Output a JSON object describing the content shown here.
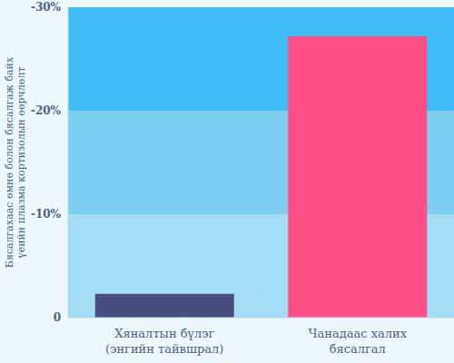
{
  "chart_data": {
    "type": "bar",
    "y_label": "Бясалгахаас өмнө болон бясалгаж байх үеийн плазма кортизолын өөрчлөлт",
    "categories": [
      "Хяналтын бүлэг (энгийн тайвшрал)",
      "Чанадаас халих бясалгал"
    ],
    "values": [
      -2.3,
      -27.2
    ],
    "colors": [
      "#4a4e7e",
      "#ff4f86"
    ],
    "ylim": [
      0,
      -30
    ],
    "yticks": [
      0,
      {
        "value": -10,
        "label": "-10%"
      },
      {
        "value": -20,
        "label": "-20%"
      },
      {
        "value": -30,
        "label": "-30%"
      }
    ]
  }
}
